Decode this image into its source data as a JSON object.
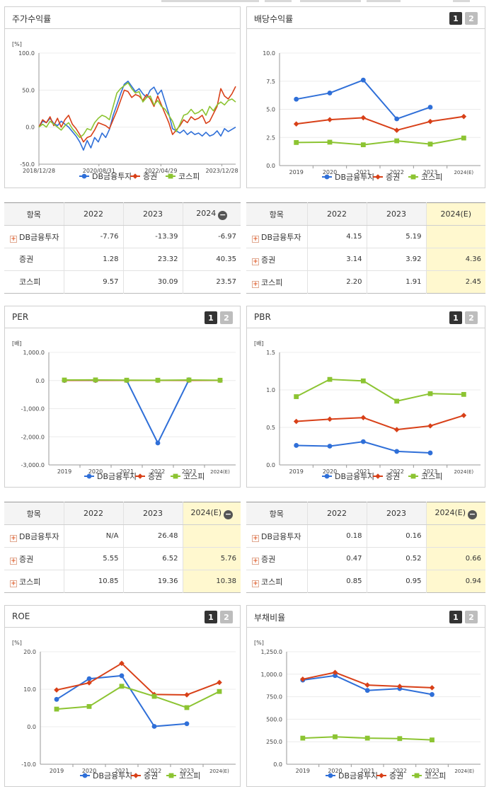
{
  "legend": [
    "DB금융투자",
    "증권",
    "코스피"
  ],
  "colors": {
    "db": "#2f6fd8",
    "sec": "#d84018",
    "kospi": "#8cc432"
  },
  "toggle": [
    "1",
    "2"
  ],
  "panels": {
    "stock": {
      "title": "주가수익률",
      "unit": "[%]"
    },
    "div": {
      "title": "배당수익률",
      "unit": ""
    },
    "per": {
      "title": "PER",
      "unit": "[배]"
    },
    "pbr": {
      "title": "PBR",
      "unit": "[배]"
    },
    "roe": {
      "title": "ROE",
      "unit": "[%]"
    },
    "debt": {
      "title": "부채비율",
      "unit": "[%]"
    }
  },
  "tables": {
    "stock": {
      "headers": [
        "항목",
        "2022",
        "2023",
        "2024"
      ],
      "rows": [
        {
          "name": "DB금융투자",
          "plus": true,
          "values": [
            "-7.76",
            "-13.39",
            "-6.97"
          ]
        },
        {
          "name": "증권",
          "plus": false,
          "values": [
            "1.28",
            "23.32",
            "40.35"
          ]
        },
        {
          "name": "코스피",
          "plus": false,
          "values": [
            "9.57",
            "30.09",
            "23.57"
          ]
        }
      ]
    },
    "div": {
      "headers": [
        "항목",
        "2022",
        "2023",
        "2024(E)"
      ],
      "rows": [
        {
          "name": "DB금융투자",
          "plus": true,
          "values": [
            "4.15",
            "5.19",
            ""
          ]
        },
        {
          "name": "증권",
          "plus": true,
          "values": [
            "3.14",
            "3.92",
            "4.36"
          ]
        },
        {
          "name": "코스피",
          "plus": true,
          "values": [
            "2.20",
            "1.91",
            "2.45"
          ]
        }
      ]
    },
    "per": {
      "headers": [
        "항목",
        "2022",
        "2023",
        "2024(E)"
      ],
      "rows": [
        {
          "name": "DB금융투자",
          "plus": true,
          "values": [
            "N/A",
            "26.48",
            ""
          ]
        },
        {
          "name": "증권",
          "plus": true,
          "values": [
            "5.55",
            "6.52",
            "5.76"
          ]
        },
        {
          "name": "코스피",
          "plus": true,
          "values": [
            "10.85",
            "19.36",
            "10.38"
          ]
        }
      ]
    },
    "pbr": {
      "headers": [
        "항목",
        "2022",
        "2023",
        "2024(E)"
      ],
      "rows": [
        {
          "name": "DB금융투자",
          "plus": true,
          "values": [
            "0.18",
            "0.16",
            ""
          ]
        },
        {
          "name": "증권",
          "plus": true,
          "values": [
            "0.47",
            "0.52",
            "0.66"
          ]
        },
        {
          "name": "코스피",
          "plus": true,
          "values": [
            "0.85",
            "0.95",
            "0.94"
          ]
        }
      ]
    }
  },
  "chart_data": [
    {
      "id": "stock",
      "type": "line",
      "title": "주가수익률",
      "ylabel": "[%]",
      "ylim": [
        -50,
        100
      ],
      "yticks": [
        "100.0",
        "50.0",
        "0.0",
        "-50.0"
      ],
      "ytick_values": [
        100,
        50,
        0,
        -50
      ],
      "xticks": [
        "2018/12/28",
        "2020/08/31",
        "2022/04/29",
        "2023/12/28"
      ],
      "series": [
        {
          "name": "DB금융투자",
          "values": [
            0,
            8,
            6,
            12,
            5,
            2,
            8,
            4,
            0,
            -6,
            -12,
            -20,
            -31,
            -18,
            -28,
            -14,
            -20,
            -8,
            -14,
            -3,
            16,
            30,
            45,
            58,
            62,
            55,
            48,
            52,
            45,
            40,
            50,
            54,
            44,
            50,
            34,
            18,
            -2,
            -5,
            -8,
            -4,
            -10,
            -6,
            -10,
            -8,
            -12,
            -7,
            -12,
            -10,
            -5,
            -12,
            -2,
            -6,
            -3,
            0
          ]
        },
        {
          "name": "증권",
          "values": [
            0,
            10,
            6,
            14,
            2,
            12,
            0,
            10,
            16,
            4,
            -2,
            -10,
            -20,
            -14,
            -12,
            -4,
            6,
            4,
            2,
            -2,
            10,
            22,
            36,
            50,
            48,
            40,
            44,
            42,
            36,
            44,
            38,
            28,
            42,
            30,
            18,
            6,
            -10,
            -4,
            2,
            10,
            6,
            14,
            10,
            12,
            16,
            5,
            8,
            18,
            28,
            52,
            42,
            38,
            45,
            55
          ]
        },
        {
          "name": "코스피",
          "values": [
            0,
            4,
            0,
            8,
            4,
            0,
            -4,
            2,
            6,
            -2,
            -8,
            -14,
            -10,
            -2,
            -4,
            6,
            12,
            16,
            14,
            10,
            28,
            46,
            52,
            56,
            60,
            52,
            46,
            48,
            34,
            40,
            42,
            30,
            36,
            28,
            24,
            16,
            8,
            -6,
            4,
            16,
            18,
            24,
            18,
            20,
            24,
            16,
            28,
            22,
            30,
            34,
            30,
            36,
            38,
            34
          ]
        }
      ]
    },
    {
      "id": "div",
      "type": "line",
      "title": "배당수익률",
      "categories": [
        "2019",
        "2020",
        "2021",
        "2022",
        "2023",
        "2024(E)"
      ],
      "ylim": [
        0,
        10
      ],
      "yticks": [
        "10.0",
        "7.5",
        "5.0",
        "2.5",
        "0.0"
      ],
      "ytick_values": [
        10,
        7.5,
        5,
        2.5,
        0
      ],
      "series": [
        {
          "name": "DB금융투자",
          "values": [
            5.9,
            6.45,
            7.6,
            4.15,
            5.19,
            null
          ]
        },
        {
          "name": "증권",
          "values": [
            3.7,
            4.08,
            4.25,
            3.14,
            3.92,
            4.36
          ]
        },
        {
          "name": "코스피",
          "values": [
            2.05,
            2.08,
            1.85,
            2.2,
            1.91,
            2.45
          ]
        }
      ]
    },
    {
      "id": "per",
      "type": "line",
      "title": "PER",
      "ylabel": "[배]",
      "categories": [
        "2019",
        "2020",
        "2021",
        "2022",
        "2023",
        "2024(E)"
      ],
      "ylim": [
        -3000,
        1000
      ],
      "yticks": [
        "1,000.0",
        "0.0",
        "-1,000.0",
        "-2,000.0",
        "-3,000.0"
      ],
      "ytick_values": [
        1000,
        0,
        -1000,
        -2000,
        -3000
      ],
      "series": [
        {
          "name": "DB금융투자",
          "values": [
            5,
            8,
            6,
            -2220,
            26.48,
            null
          ]
        },
        {
          "name": "증권",
          "values": [
            6,
            9,
            6,
            5.55,
            6.52,
            5.76
          ]
        },
        {
          "name": "코스피",
          "values": [
            18,
            22,
            12,
            10.85,
            19.36,
            10.38
          ]
        }
      ]
    },
    {
      "id": "pbr",
      "type": "line",
      "title": "PBR",
      "ylabel": "[배]",
      "categories": [
        "2019",
        "2020",
        "2021",
        "2022",
        "2023",
        "2024(E)"
      ],
      "ylim": [
        0,
        1.5
      ],
      "yticks": [
        "1.5",
        "1.0",
        "0.5",
        "0.0"
      ],
      "ytick_values": [
        1.5,
        1,
        0.5,
        0
      ],
      "series": [
        {
          "name": "DB금융투자",
          "values": [
            0.26,
            0.25,
            0.31,
            0.18,
            0.16,
            null
          ]
        },
        {
          "name": "증권",
          "values": [
            0.58,
            0.61,
            0.63,
            0.47,
            0.52,
            0.66
          ]
        },
        {
          "name": "코스피",
          "values": [
            0.91,
            1.14,
            1.12,
            0.85,
            0.95,
            0.94
          ]
        }
      ]
    },
    {
      "id": "roe",
      "type": "line",
      "title": "ROE",
      "ylabel": "[%]",
      "categories": [
        "2019",
        "2020",
        "2021",
        "2022",
        "2023",
        "2024(E)"
      ],
      "ylim": [
        -10,
        20
      ],
      "yticks": [
        "20.0",
        "10.0",
        "0.0",
        "-10.0"
      ],
      "ytick_values": [
        20,
        10,
        0,
        -10
      ],
      "series": [
        {
          "name": "DB금융투자",
          "values": [
            7.3,
            12.8,
            13.6,
            0.1,
            0.8,
            null
          ]
        },
        {
          "name": "증권",
          "values": [
            9.8,
            11.7,
            16.9,
            8.6,
            8.5,
            11.8
          ]
        },
        {
          "name": "코스피",
          "values": [
            4.7,
            5.4,
            10.8,
            8.1,
            5.1,
            9.4
          ]
        }
      ]
    },
    {
      "id": "debt",
      "type": "line",
      "title": "부채비율",
      "ylabel": "[%]",
      "categories": [
        "2019",
        "2020",
        "2021",
        "2022",
        "2023",
        "2024(E)"
      ],
      "ylim": [
        0,
        1250
      ],
      "yticks": [
        "1,250.0",
        "1,000.0",
        "750.0",
        "500.0",
        "250.0",
        "0.0"
      ],
      "ytick_values": [
        1250,
        1000,
        750,
        500,
        250,
        0
      ],
      "series": [
        {
          "name": "DB금융투자",
          "values": [
            935,
            985,
            820,
            840,
            775,
            null
          ]
        },
        {
          "name": "증권",
          "values": [
            945,
            1020,
            880,
            865,
            850,
            null
          ]
        },
        {
          "name": "코스피",
          "values": [
            290,
            305,
            290,
            285,
            270,
            null
          ]
        }
      ]
    }
  ]
}
